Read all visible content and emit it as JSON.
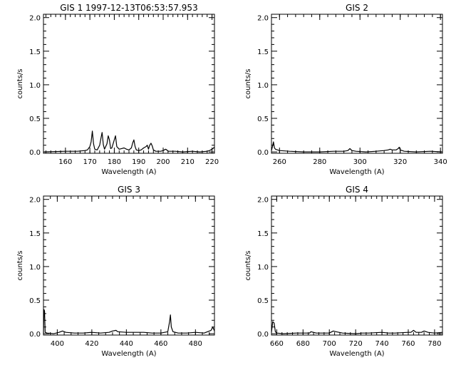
{
  "chart_data": [
    {
      "type": "line",
      "title": "GIS 1 1997-12-13T06:53:57.953",
      "xlabel": "Wavelength (A)",
      "ylabel": "counts/s",
      "xlim": [
        151,
        221
      ],
      "ylim": [
        -0.02,
        2.05
      ],
      "xticks": [
        "160",
        "170",
        "180",
        "190",
        "200",
        "210",
        "220"
      ],
      "yticks": [
        "0.0",
        "0.5",
        "1.0",
        "1.5",
        "2.0"
      ],
      "x": [
        151,
        160,
        165,
        168,
        169,
        170,
        170.5,
        171,
        171.5,
        172,
        173,
        174,
        174.5,
        175,
        175.5,
        176,
        177,
        177.5,
        178,
        178.5,
        179,
        180,
        180.5,
        181,
        182,
        183,
        184,
        185,
        186,
        187,
        187.5,
        188,
        188.5,
        189,
        190,
        191,
        192,
        193,
        193.5,
        194,
        194.5,
        195,
        195.5,
        196,
        197,
        199,
        200,
        201,
        201.5,
        202,
        203,
        205,
        208,
        212,
        215,
        218,
        219,
        220,
        221
      ],
      "values": [
        0.0,
        0.01,
        0.01,
        0.02,
        0.03,
        0.08,
        0.15,
        0.31,
        0.12,
        0.04,
        0.03,
        0.1,
        0.2,
        0.29,
        0.11,
        0.04,
        0.12,
        0.24,
        0.18,
        0.05,
        0.06,
        0.18,
        0.24,
        0.08,
        0.04,
        0.05,
        0.06,
        0.04,
        0.03,
        0.06,
        0.13,
        0.18,
        0.08,
        0.03,
        0.02,
        0.03,
        0.06,
        0.08,
        0.1,
        0.04,
        0.1,
        0.13,
        0.09,
        0.03,
        0.01,
        0.01,
        0.02,
        0.04,
        0.03,
        0.01,
        0.01,
        0.01,
        0.0,
        0.01,
        0.0,
        0.01,
        0.02,
        0.04,
        0.07
      ]
    },
    {
      "type": "line",
      "title": "GIS 2",
      "xlabel": "Wavelength (A)",
      "ylabel": "counts/s",
      "xlim": [
        256,
        341
      ],
      "ylim": [
        -0.02,
        2.05
      ],
      "xticks": [
        "260",
        "280",
        "300",
        "320",
        "340"
      ],
      "yticks": [
        "0.0",
        "0.5",
        "1.0",
        "1.5",
        "2.0"
      ],
      "x": [
        256,
        256.5,
        257,
        257.5,
        258,
        260,
        265,
        272,
        280,
        287,
        292,
        294,
        295,
        296,
        298,
        303,
        308,
        312,
        314,
        315,
        316,
        318,
        319,
        319.5,
        320,
        322,
        328,
        335,
        341
      ],
      "values": [
        0.02,
        0.08,
        0.15,
        0.06,
        0.04,
        0.02,
        0.01,
        0.0,
        0.0,
        0.01,
        0.01,
        0.02,
        0.05,
        0.02,
        0.01,
        0.0,
        0.01,
        0.02,
        0.03,
        0.04,
        0.03,
        0.03,
        0.05,
        0.07,
        0.03,
        0.01,
        0.0,
        0.01,
        0.0
      ]
    },
    {
      "type": "line",
      "title": "GIS 3",
      "xlabel": "Wavelength (A)",
      "ylabel": "counts/s",
      "xlim": [
        392,
        491
      ],
      "ylim": [
        -0.02,
        2.05
      ],
      "xticks": [
        "400",
        "420",
        "440",
        "460",
        "480"
      ],
      "yticks": [
        "0.0",
        "0.5",
        "1.0",
        "1.5",
        "2.0"
      ],
      "x": [
        392,
        392.3,
        392.6,
        393,
        394,
        398,
        401,
        403,
        405,
        410,
        415,
        420,
        425,
        430,
        432,
        434,
        435,
        440,
        445,
        450,
        455,
        460,
        464,
        465,
        465.5,
        466,
        467,
        470,
        475,
        480,
        485,
        489,
        490,
        491
      ],
      "values": [
        0.0,
        0.36,
        0.34,
        0.02,
        0.01,
        0.0,
        0.02,
        0.04,
        0.02,
        0.01,
        0.01,
        0.02,
        0.01,
        0.02,
        0.04,
        0.05,
        0.03,
        0.02,
        0.02,
        0.02,
        0.01,
        0.01,
        0.03,
        0.18,
        0.28,
        0.1,
        0.03,
        0.01,
        0.01,
        0.02,
        0.01,
        0.05,
        0.1,
        0.04
      ]
    },
    {
      "type": "line",
      "title": "GIS 4",
      "xlabel": "Wavelength (A)",
      "ylabel": "counts/s",
      "xlim": [
        656,
        786
      ],
      "ylim": [
        -0.02,
        2.05
      ],
      "xticks": [
        "660",
        "680",
        "700",
        "720",
        "740",
        "760",
        "780"
      ],
      "yticks": [
        "0.0",
        "0.5",
        "1.0",
        "1.5",
        "2.0"
      ],
      "x": [
        656,
        657,
        658,
        659,
        660,
        665,
        675,
        685,
        686,
        690,
        700,
        703,
        705,
        710,
        720,
        725,
        730,
        740,
        745,
        750,
        760,
        762,
        764,
        766,
        770,
        772,
        775,
        780,
        786
      ],
      "values": [
        0.02,
        0.18,
        0.16,
        0.03,
        0.01,
        0.0,
        0.01,
        0.01,
        0.03,
        0.01,
        0.01,
        0.04,
        0.03,
        0.01,
        0.0,
        0.01,
        0.01,
        0.02,
        0.01,
        0.01,
        0.02,
        0.02,
        0.05,
        0.02,
        0.02,
        0.04,
        0.02,
        0.01,
        0.02
      ]
    }
  ]
}
